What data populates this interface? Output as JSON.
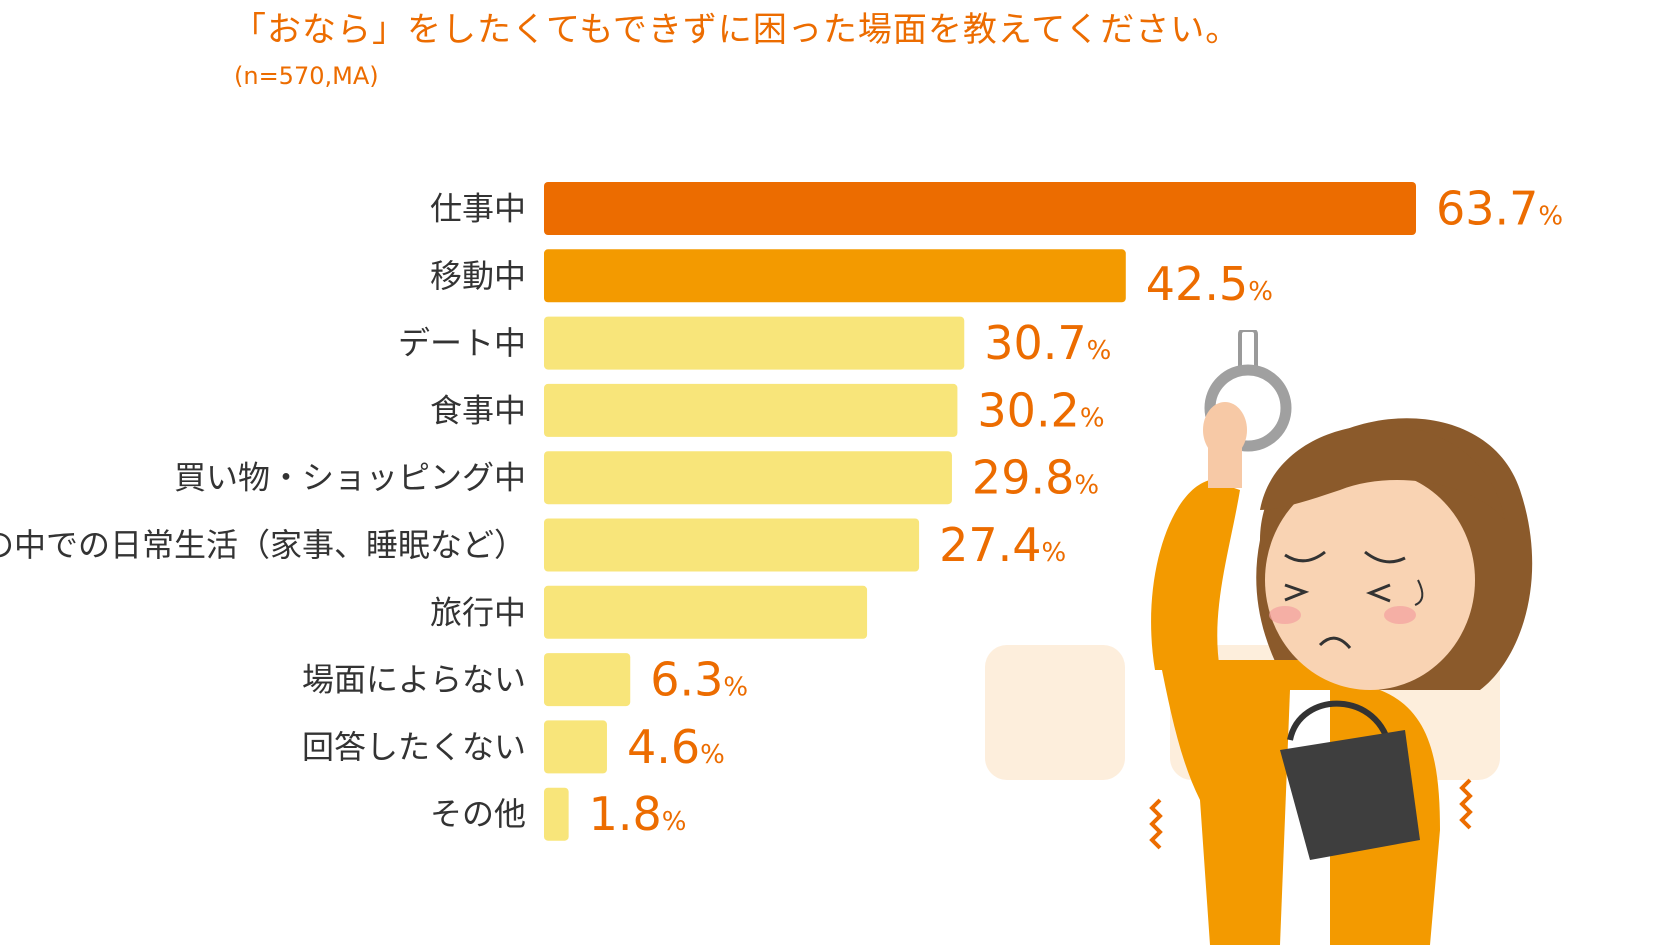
{
  "chart_data": {
    "type": "bar",
    "orientation": "horizontal",
    "title": "「おなら」をしたくてもできずに困った場面を教えてください。",
    "subtitle": "(n=570,MA)",
    "unit": "%",
    "categories": [
      "仕事中",
      "移動中",
      "デート中",
      "食事中",
      "買い物・ショッピング中",
      "家の中での日常生活（家事、睡眠など）",
      "旅行中",
      "場面によらない",
      "回答したくない",
      "その他"
    ],
    "values": [
      63.7,
      42.5,
      30.7,
      30.2,
      29.8,
      27.4,
      23.6,
      6.3,
      4.6,
      1.8
    ],
    "value_labels": [
      "63.7",
      "42.5",
      "30.7",
      "30.2",
      "29.8",
      "27.4",
      "",
      "6.3",
      "4.6",
      "1.8"
    ],
    "bar_colors": [
      "#ec6c00",
      "#f39a00",
      "#f8e57a",
      "#f8e57a",
      "#f8e57a",
      "#f8e57a",
      "#f8e57a",
      "#f8e57a",
      "#f8e57a",
      "#f8e57a"
    ],
    "xlim": [
      0,
      63.7
    ],
    "grid": false,
    "legend": "none"
  },
  "illustration": {
    "icon": "woman-holding-strap-icon"
  }
}
